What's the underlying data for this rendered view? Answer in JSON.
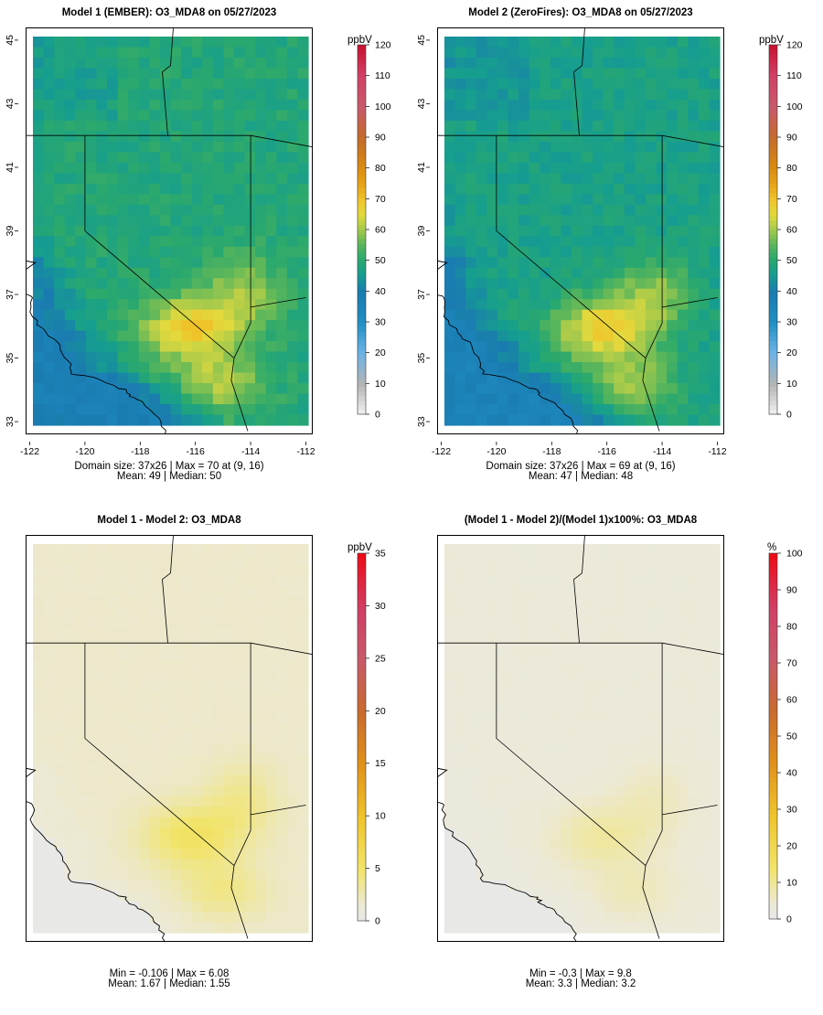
{
  "chart_data": [
    {
      "type": "heatmap",
      "title": "Model 1 (EMBER): O3_MDA8 on 05/27/2023",
      "unit": "ppbV",
      "x_ticks": [
        "-122",
        "-120",
        "-118",
        "-116",
        "-114",
        "-112"
      ],
      "y_ticks": [
        "33",
        "35",
        "37",
        "39",
        "41",
        "43",
        "45"
      ],
      "xlim": [
        -122,
        -112
      ],
      "ylim": [
        32.6,
        45.4
      ],
      "colorbar_range": [
        0,
        120
      ],
      "colorbar_ticks": [
        "0",
        "10",
        "20",
        "30",
        "40",
        "50",
        "60",
        "70",
        "80",
        "90",
        "100",
        "110",
        "120"
      ],
      "scheme": "abs",
      "grid_cols": 26,
      "grid_rows": 37,
      "field_max": 70,
      "land_base": 49,
      "ocean_base": 38,
      "hotspot_strength": 20,
      "stats_line1": "Domain size: 37x26 | Max = 70 at (9, 16)",
      "stats_line2": "Mean: 49 |  Median: 50"
    },
    {
      "type": "heatmap",
      "title": "Model 2 (ZeroFires): O3_MDA8 on 05/27/2023",
      "unit": "ppbV",
      "x_ticks": [
        "-122",
        "-120",
        "-118",
        "-116",
        "-114",
        "-112"
      ],
      "y_ticks": [
        "33",
        "35",
        "37",
        "39",
        "41",
        "43",
        "45"
      ],
      "xlim": [
        -122,
        -112
      ],
      "ylim": [
        32.6,
        45.4
      ],
      "colorbar_range": [
        0,
        120
      ],
      "colorbar_ticks": [
        "0",
        "10",
        "20",
        "30",
        "40",
        "50",
        "60",
        "70",
        "80",
        "90",
        "100",
        "110",
        "120"
      ],
      "scheme": "abs",
      "grid_cols": 26,
      "grid_rows": 37,
      "field_max": 69,
      "land_base": 47,
      "ocean_base": 36,
      "hotspot_strength": 21,
      "stats_line1": "Domain size: 37x26 | Max = 69 at (9, 16)",
      "stats_line2": "Mean: 47 |  Median: 48"
    },
    {
      "type": "heatmap",
      "title": "Model 1 - Model 2: O3_MDA8",
      "unit": "ppbV",
      "x_ticks": [],
      "y_ticks": [],
      "xlim": [
        -122,
        -112
      ],
      "ylim": [
        32.6,
        45.4
      ],
      "colorbar_range": [
        0,
        35
      ],
      "colorbar_ticks": [
        "0",
        "5",
        "10",
        "15",
        "20",
        "25",
        "30",
        "35"
      ],
      "scheme": "diff",
      "grid_cols": 26,
      "grid_rows": 37,
      "field_max": 6.08,
      "land_base": 1.8,
      "ocean_base": 0.05,
      "hotspot_strength": 3.5,
      "stats_line1": "Min = -0.106 | Max = 6.08",
      "stats_line2": "Mean: 1.67 |  Median: 1.55"
    },
    {
      "type": "heatmap",
      "title": "(Model 1 - Model 2)/(Model 1)x100%: O3_MDA8",
      "unit": "%",
      "x_ticks": [],
      "y_ticks": [],
      "xlim": [
        -122,
        -112
      ],
      "ylim": [
        32.6,
        45.4
      ],
      "colorbar_range": [
        0,
        100
      ],
      "colorbar_ticks": [
        "0",
        "10",
        "20",
        "30",
        "40",
        "50",
        "60",
        "70",
        "80",
        "90",
        "100"
      ],
      "scheme": "pct",
      "grid_cols": 26,
      "grid_rows": 37,
      "field_max": 9.8,
      "land_base": 3.6,
      "ocean_base": 0.2,
      "hotspot_strength": 5.5,
      "stats_line1": "Min = -0.3 | Max = 9.8",
      "stats_line2": "Mean: 3.3 |  Median: 3.2"
    }
  ]
}
